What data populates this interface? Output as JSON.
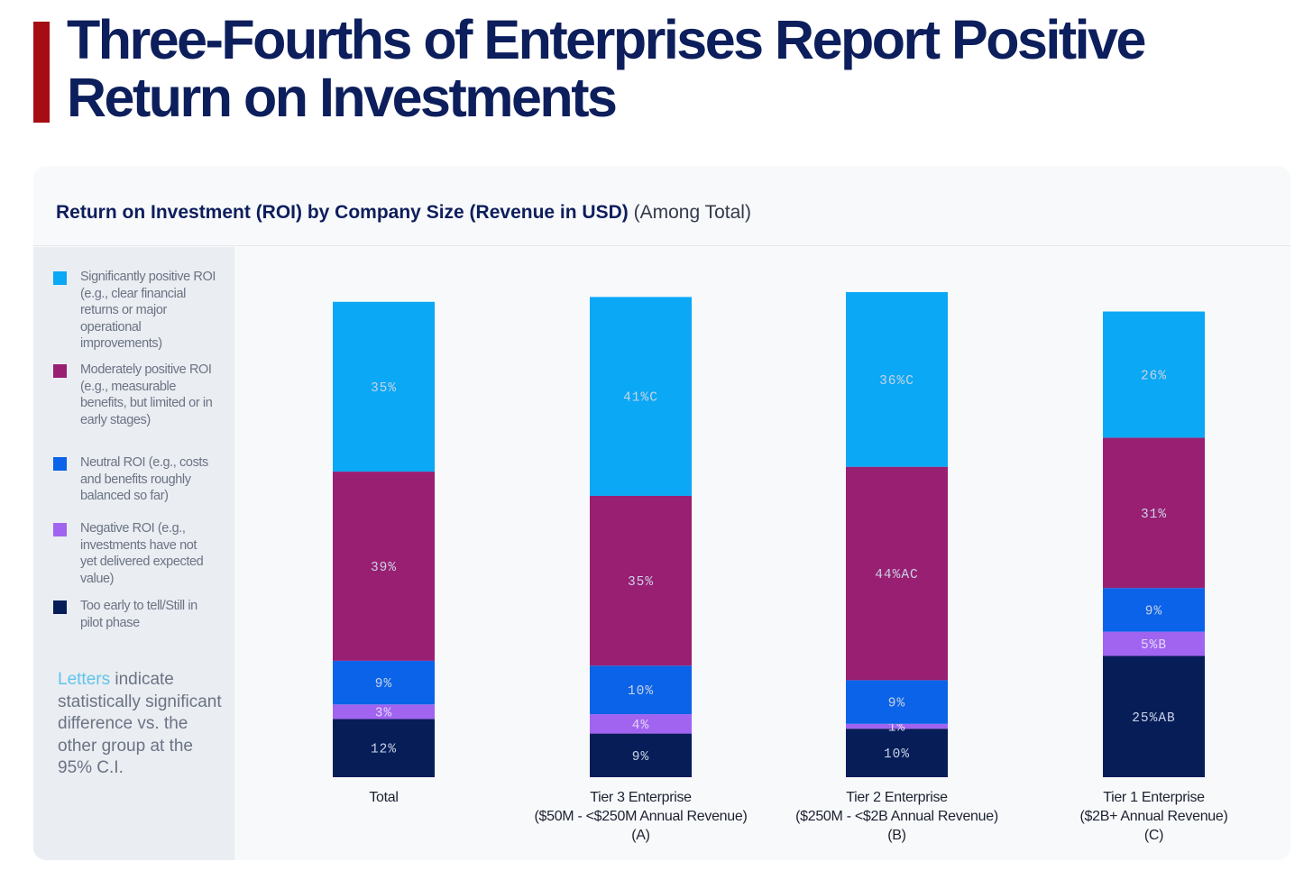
{
  "title": "Three-Fourths of Enterprises Report Positive Return on Investments",
  "colors": {
    "accent_bar": "#a50d12",
    "title": "#0d1e5c"
  },
  "chart_data": {
    "type": "bar",
    "stacked": true,
    "title_bold": "Return on Investment (ROI) by Company Size (Revenue in USD)",
    "title_suffix": "(Among Total)",
    "categories": [
      {
        "lines": [
          "Total"
        ]
      },
      {
        "lines": [
          "Tier 3 Enterprise",
          "($50M - <$250M Annual Revenue)",
          "(A)"
        ]
      },
      {
        "lines": [
          "Tier 2 Enterprise",
          "($250M - <$2B Annual Revenue)",
          "(B)"
        ]
      },
      {
        "lines": [
          "Tier 1 Enterprise",
          "($2B+ Annual Revenue)",
          "(C)"
        ]
      }
    ],
    "unit": "%",
    "series": [
      {
        "name": "Too early to tell/Still in pilot phase",
        "color": "#061d58",
        "values": [
          12,
          9,
          10,
          25
        ],
        "sig": [
          "",
          "",
          "",
          "AB"
        ]
      },
      {
        "name": "Negative ROI (e.g., investments have not yet delivered expected value)",
        "color": "#a164f0",
        "values": [
          3,
          4,
          1,
          5
        ],
        "sig": [
          "",
          "",
          "",
          "B"
        ]
      },
      {
        "name": "Neutral ROI (e.g., costs and benefits roughly balanced so far)",
        "color": "#0a63e8",
        "values": [
          9,
          10,
          9,
          9
        ],
        "sig": [
          "",
          "",
          "",
          ""
        ]
      },
      {
        "name": "Moderately positive ROI (e.g., measurable benefits, but limited or in early stages)",
        "color": "#991f73",
        "values": [
          39,
          35,
          44,
          31
        ],
        "sig": [
          "",
          "",
          "AC",
          ""
        ]
      },
      {
        "name": "Significantly positive ROI (e.g., clear financial returns or major operational improvements)",
        "color": "#0aa8f5",
        "values": [
          35,
          41,
          36,
          26
        ],
        "sig": [
          "",
          "C",
          "C",
          ""
        ]
      }
    ],
    "legend_placement": "left",
    "grid": false,
    "axes_visible": false
  },
  "note": {
    "highlight": "Letters",
    "rest": " indicate statistically significant difference vs. the other group at the 95% C.I."
  }
}
